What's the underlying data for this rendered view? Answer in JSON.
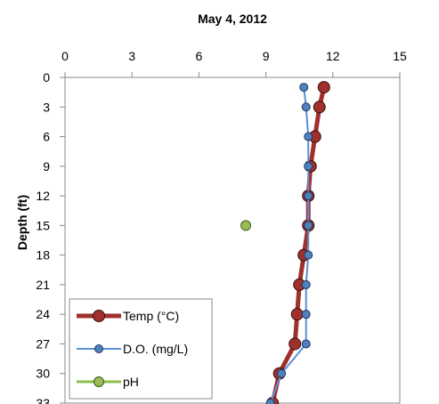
{
  "chart_data": {
    "type": "line",
    "title": "May 4, 2012",
    "ylabel": "Depth (ft)",
    "xlabel": "",
    "x_axis_position": "top",
    "y_axis_inverted": true,
    "xlim": [
      0,
      15
    ],
    "ylim": [
      0,
      33
    ],
    "x_ticks": [
      0,
      3,
      6,
      9,
      12,
      15
    ],
    "y_ticks": [
      0,
      3,
      6,
      9,
      12,
      15,
      18,
      21,
      24,
      27,
      30,
      33
    ],
    "grid": false,
    "legend_position": "bottom-left",
    "series": [
      {
        "name": "Temp (°C)",
        "color": "#a0302c",
        "marker_fill": "#a0302c",
        "points": [
          {
            "depth": 1,
            "value": 11.6
          },
          {
            "depth": 3,
            "value": 11.4
          },
          {
            "depth": 6,
            "value": 11.2
          },
          {
            "depth": 9,
            "value": 11.0
          },
          {
            "depth": 12,
            "value": 10.9
          },
          {
            "depth": 15,
            "value": 10.9
          },
          {
            "depth": 18,
            "value": 10.7
          },
          {
            "depth": 21,
            "value": 10.5
          },
          {
            "depth": 24,
            "value": 10.4
          },
          {
            "depth": 27,
            "value": 10.3
          },
          {
            "depth": 30,
            "value": 9.6
          },
          {
            "depth": 33,
            "value": 9.3
          }
        ]
      },
      {
        "name": "D.O. (mg/L)",
        "color": "#5b8fd6",
        "marker_fill": "#4f81bd",
        "points": [
          {
            "depth": 1,
            "value": 10.7
          },
          {
            "depth": 3,
            "value": 10.8
          },
          {
            "depth": 6,
            "value": 10.9
          },
          {
            "depth": 9,
            "value": 10.9
          },
          {
            "depth": 12,
            "value": 10.9
          },
          {
            "depth": 15,
            "value": 10.9
          },
          {
            "depth": 18,
            "value": 10.9
          },
          {
            "depth": 21,
            "value": 10.8
          },
          {
            "depth": 24,
            "value": 10.8
          },
          {
            "depth": 27,
            "value": 10.8
          },
          {
            "depth": 30,
            "value": 9.7
          },
          {
            "depth": 33,
            "value": 9.2
          }
        ]
      },
      {
        "name": "pH",
        "color": "#8cbf4b",
        "marker_fill": "#9bbb59",
        "points": [
          {
            "depth": 15,
            "value": 8.1
          }
        ]
      }
    ]
  }
}
